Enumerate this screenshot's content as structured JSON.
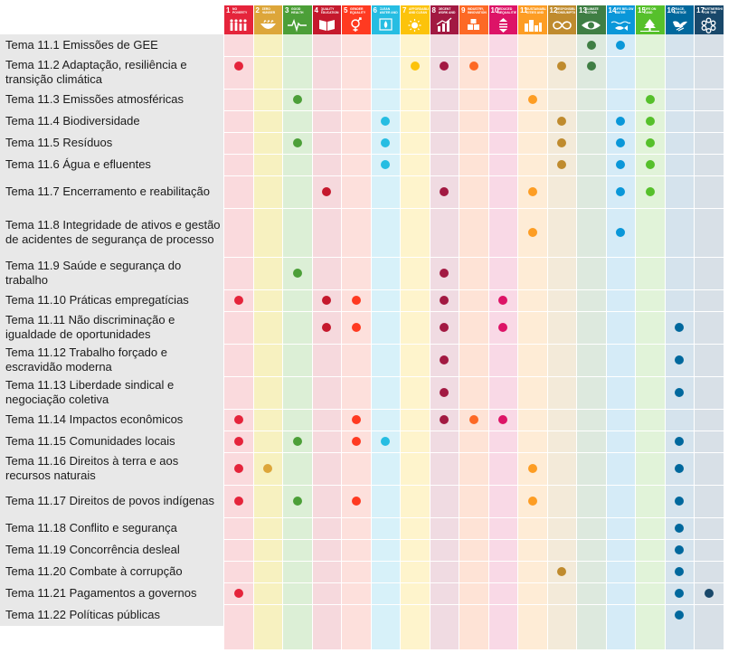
{
  "sdgs": [
    {
      "num": "1",
      "title": "No poverty",
      "color": "#e5243b",
      "tint": "#fadadd",
      "icon": "family-icon"
    },
    {
      "num": "2",
      "title": "Zero hunger",
      "color": "#dda63a",
      "tint": "#f7f1c0",
      "icon": "bowl-icon"
    },
    {
      "num": "3",
      "title": "Good health and well-being",
      "color": "#4c9f38",
      "tint": "#dcefd6",
      "icon": "heartbeat-icon"
    },
    {
      "num": "4",
      "title": "Quality education",
      "color": "#c5192d",
      "tint": "#f6d9dd",
      "icon": "book-icon"
    },
    {
      "num": "5",
      "title": "Gender equality",
      "color": "#ff3a21",
      "tint": "#fde0dc",
      "icon": "gender-icon"
    },
    {
      "num": "6",
      "title": "Clean water and sanitation",
      "color": "#26bde2",
      "tint": "#d7f1f9",
      "icon": "water-drop-icon"
    },
    {
      "num": "7",
      "title": "Affordable and clean energy",
      "color": "#fcc30b",
      "tint": "#fef4cc",
      "icon": "sun-icon"
    },
    {
      "num": "8",
      "title": "Decent work and economic growth",
      "color": "#a21942",
      "tint": "#f0dbe2",
      "icon": "growth-chart-icon"
    },
    {
      "num": "9",
      "title": "Industry, innovation and infrastructure",
      "color": "#fd6925",
      "tint": "#fee3d6",
      "icon": "cubes-icon"
    },
    {
      "num": "10",
      "title": "Reduced inequalities",
      "color": "#dd1367",
      "tint": "#f9d9e6",
      "icon": "equality-icon"
    },
    {
      "num": "11",
      "title": "Sustainable cities and communities",
      "color": "#fd9d24",
      "tint": "#feecd6",
      "icon": "city-icon"
    },
    {
      "num": "12",
      "title": "Responsible consumption and production",
      "color": "#bf8b2e",
      "tint": "#f3ead9",
      "icon": "infinity-icon"
    },
    {
      "num": "13",
      "title": "Climate action",
      "color": "#3f7e44",
      "tint": "#dde9de",
      "icon": "eye-globe-icon"
    },
    {
      "num": "14",
      "title": "Life below water",
      "color": "#0a97d9",
      "tint": "#d5ebf7",
      "icon": "fish-icon"
    },
    {
      "num": "15",
      "title": "Life on land",
      "color": "#56c02b",
      "tint": "#e1f3d9",
      "icon": "tree-icon"
    },
    {
      "num": "16",
      "title": "Peace, justice and strong institutions",
      "color": "#00689d",
      "tint": "#d5e3ed",
      "icon": "dove-icon"
    },
    {
      "num": "17",
      "title": "Partnerships for the goals",
      "color": "#19486a",
      "tint": "#d8e0e7",
      "icon": "flower-ring-icon"
    }
  ],
  "rows": [
    {
      "label": "Tema 11.1 Emissões de GEE",
      "marks": [
        13,
        14
      ]
    },
    {
      "label": "Tema 11.2 Adaptação, resiliência e transição climática",
      "marks": [
        1,
        7,
        8,
        9,
        12,
        13
      ]
    },
    {
      "label": "Tema 11.3 Emissões atmosféricas",
      "marks": [
        3,
        11,
        15
      ]
    },
    {
      "label": "Tema 11.4 Biodiversidade",
      "marks": [
        6,
        12,
        14,
        15
      ]
    },
    {
      "label": "Tema 11.5 Resíduos",
      "marks": [
        3,
        6,
        12,
        14,
        15
      ]
    },
    {
      "label": "Tema 11.6 Água e efluentes",
      "marks": [
        6,
        12,
        14,
        15
      ]
    },
    {
      "label": "Tema 11.7 Encerramento e reabilitação",
      "marks": [
        4,
        8,
        11,
        14,
        15
      ]
    },
    {
      "label": "Tema 11.8 Integridade de ativos e gestão de acidentes de segurança de processo",
      "marks": [
        11,
        14
      ]
    },
    {
      "label": "Tema 11.9 Saúde e segurança do trabalho",
      "marks": [
        3,
        8
      ]
    },
    {
      "label": "Tema 11.10 Práticas empregatícias",
      "marks": [
        1,
        4,
        5,
        8,
        10
      ]
    },
    {
      "label": "Tema 11.11 Não discriminação e igualdade de oportunidades",
      "marks": [
        4,
        5,
        8,
        10,
        16
      ]
    },
    {
      "label": "Tema 11.12 Trabalho forçado e escravidão moderna",
      "marks": [
        8,
        16
      ]
    },
    {
      "label": "Tema 11.13 Liberdade sindical e negociação coletiva",
      "marks": [
        8,
        16
      ]
    },
    {
      "label": "Tema 11.14 Impactos econômicos",
      "marks": [
        1,
        5,
        8,
        9,
        10
      ]
    },
    {
      "label": "Tema 11.15 Comunidades locais",
      "marks": [
        1,
        3,
        5,
        6,
        16
      ]
    },
    {
      "label": "Tema 11.16 Direitos à terra e aos recursos naturais",
      "marks": [
        1,
        2,
        11,
        16
      ]
    },
    {
      "label": "Tema 11.17 Direitos de povos indígenas",
      "marks": [
        1,
        3,
        5,
        11,
        16
      ]
    },
    {
      "label": "Tema 11.18 Conflito e segurança",
      "marks": [
        16
      ]
    },
    {
      "label": "Tema 11.19 Concorrência desleal",
      "marks": [
        16
      ]
    },
    {
      "label": "Tema 11.20 Combate à corrupção",
      "marks": [
        12,
        16
      ]
    },
    {
      "label": "Tema 11.21 Pagamentos a governos",
      "marks": [
        1,
        16,
        17
      ]
    },
    {
      "label": "Tema 11.22 Políticas públicas",
      "marks": [
        16
      ]
    }
  ]
}
